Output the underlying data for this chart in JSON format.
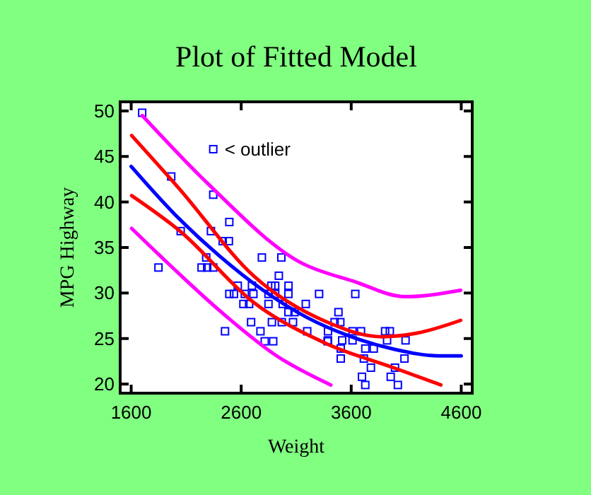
{
  "chart_data": {
    "type": "scatter",
    "title": "Plot of Fitted Model",
    "xlabel": "Weight",
    "ylabel": "MPG Highway",
    "xlim": [
      1500,
      4700
    ],
    "xticks": [
      1600,
      2600,
      3600,
      4600
    ],
    "ylim": [
      19,
      51
    ],
    "yticks": [
      20,
      25,
      30,
      35,
      40,
      45,
      50
    ],
    "grid": false,
    "marker": "square",
    "annotations": [
      {
        "text": "< outlier",
        "x": 2346,
        "y": 45.8
      }
    ],
    "series": [
      {
        "color": "#0000ff",
        "x": [
          1700,
          2346,
          1964,
          2346,
          2492,
          2050,
          2325,
          2432,
          2488,
          2788,
          2965,
          2282,
          1848,
          2240,
          2291,
          2346,
          2942,
          2569,
          2698,
          2874,
          2909,
          3030,
          2492,
          2534,
          2633,
          2711,
          2848,
          2909,
          3029,
          2620,
          2672,
          2848,
          2977,
          3085,
          3029,
          3187,
          2690,
          2879,
          2969,
          3071,
          2453,
          2775,
          3200,
          3308,
          3484,
          2814,
          2891,
          3385,
          3449,
          3501,
          3389,
          3612,
          3689,
          3908,
          3951,
          3389,
          3518,
          3612,
          3926,
          4094,
          3505,
          3728,
          3805,
          3505,
          3715,
          4084,
          3779,
          3998,
          3698,
          3959,
          3728,
          4024,
          3637
        ],
        "values": [
          49.8,
          45.8,
          42.8,
          40.8,
          37.8,
          36.8,
          36.8,
          35.7,
          35.7,
          33.9,
          33.9,
          33.9,
          32.8,
          32.8,
          32.8,
          32.8,
          31.9,
          30.8,
          30.8,
          30.8,
          30.8,
          30.8,
          29.9,
          29.9,
          29.9,
          29.9,
          29.9,
          29.9,
          29.9,
          28.8,
          28.8,
          28.8,
          28.8,
          27.9,
          27.9,
          28.8,
          26.8,
          26.8,
          26.8,
          26.8,
          25.8,
          25.8,
          25.8,
          29.9,
          27.9,
          24.7,
          24.7,
          24.7,
          26.8,
          26.8,
          25.8,
          25.8,
          25.8,
          25.8,
          25.8,
          24.8,
          24.8,
          24.8,
          24.8,
          24.8,
          23.9,
          23.9,
          23.9,
          22.8,
          22.8,
          22.8,
          21.8,
          21.8,
          20.8,
          20.8,
          19.9,
          19.9,
          29.9
        ]
      },
      {
        "type": "line",
        "color": "#0000ff",
        "marker": "none",
        "line_style": "solid",
        "x": [
          1600,
          2000,
          2400,
          2800,
          3200,
          3600,
          4000,
          4400,
          4600
        ],
        "values": [
          43.9,
          38.6,
          34.1,
          30.3,
          27.3,
          25.2,
          23.8,
          23.1,
          23.1
        ]
      },
      {
        "type": "line",
        "color": "#ff0000",
        "marker": "none",
        "line_style": "solid",
        "x": [
          1604,
          2034,
          2720,
          3363,
          3878,
          4200,
          4595
        ],
        "values": [
          47.3,
          41.5,
          31.8,
          26.9,
          25.2,
          25.6,
          27.0
        ]
      },
      {
        "type": "line",
        "color": "#ff0000",
        "marker": "none",
        "line_style": "solid",
        "x": [
          1604,
          2034,
          2720,
          3363,
          4007,
          4415
        ],
        "values": [
          40.7,
          36.9,
          28.9,
          24.5,
          21.7,
          19.9
        ]
      },
      {
        "type": "line",
        "color": "#ff00ff",
        "marker": "none",
        "line_style": "solid",
        "x": [
          1700,
          2290,
          3148,
          3620,
          4093,
          4595
        ],
        "values": [
          49.5,
          42.1,
          33.3,
          31.3,
          29.6,
          30.3
        ]
      },
      {
        "type": "line",
        "color": "#ff00ff",
        "marker": "none",
        "line_style": "solid",
        "x": [
          1604,
          1862,
          2420,
          2935,
          3363,
          3415
        ],
        "values": [
          37.1,
          34.1,
          27.9,
          23.0,
          20.2,
          19.9
        ]
      }
    ]
  }
}
